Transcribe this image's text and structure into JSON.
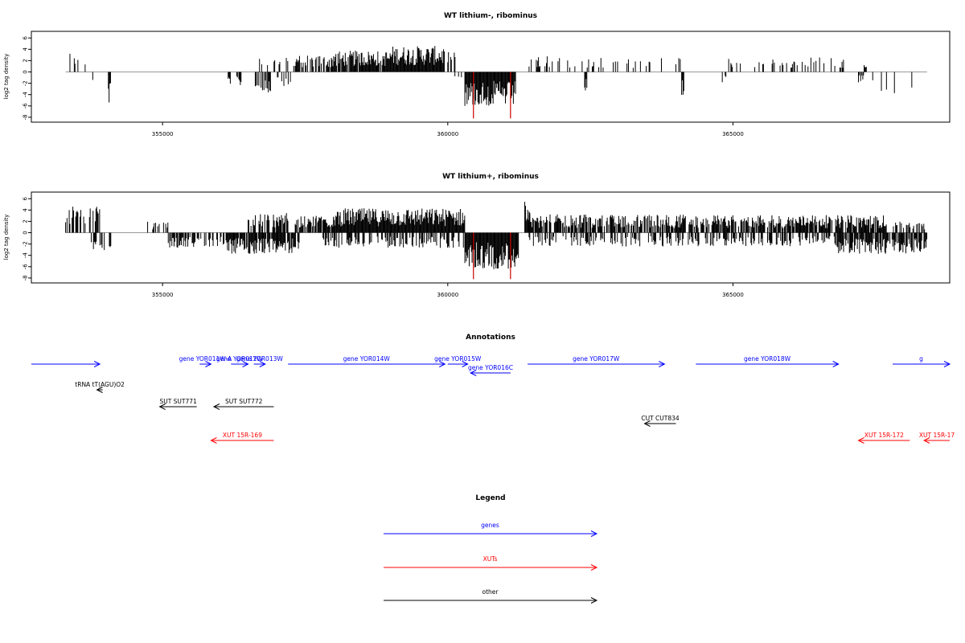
{
  "colors": {
    "gene": "#0000ff",
    "xut": "#ff0000",
    "other": "#000000",
    "highlight": "#cc0000",
    "baseline": "#999999"
  },
  "chart_data": [
    {
      "type": "bar",
      "title": "WT lithium-, ribominus",
      "ylabel": "log2 tag density",
      "xlim": [
        352700,
        368800
      ],
      "ylim": [
        -8.3,
        6.6
      ],
      "xticks": [
        355000,
        360000,
        365000
      ],
      "xtick_labels": [
        "355000",
        "360000",
        "365000"
      ],
      "yticks": [
        -8,
        -6,
        -4,
        -2,
        0,
        2,
        4,
        6
      ],
      "ytick_labels": [
        "-8",
        "-6",
        "-4",
        "-2",
        "0",
        "2",
        "4",
        "6"
      ],
      "data_range": [
        353300,
        368400
      ],
      "segments": [
        {
          "start": 353300,
          "end": 353650,
          "level": 2.6,
          "density": 0.25
        },
        {
          "start": 353700,
          "end": 353800,
          "level": -1.8,
          "density": 0.3
        },
        {
          "start": 354050,
          "end": 354100,
          "level": -4.5,
          "density": 1.0
        },
        {
          "start": 356150,
          "end": 356200,
          "level": -1.6,
          "density": 1.0
        },
        {
          "start": 356300,
          "end": 356400,
          "level": -2.0,
          "density": 0.5
        },
        {
          "start": 356600,
          "end": 356900,
          "level": -2.8,
          "density": 0.6
        },
        {
          "start": 356700,
          "end": 357200,
          "level": 2.0,
          "density": 0.3
        },
        {
          "start": 357000,
          "end": 357300,
          "level": -2.0,
          "density": 0.3
        },
        {
          "start": 357300,
          "end": 358000,
          "level": 2.2,
          "density": 0.7
        },
        {
          "start": 358000,
          "end": 359000,
          "level": 2.8,
          "density": 0.9
        },
        {
          "start": 359000,
          "end": 359950,
          "level": 3.4,
          "density": 1.0
        },
        {
          "start": 360000,
          "end": 360150,
          "level": 2.6,
          "density": 0.6
        },
        {
          "start": 360100,
          "end": 360300,
          "level": -1.2,
          "density": 0.4
        },
        {
          "start": 360300,
          "end": 361200,
          "level": -4.5,
          "density": 1.0
        },
        {
          "start": 361400,
          "end": 362000,
          "level": 2.4,
          "density": 0.25
        },
        {
          "start": 362000,
          "end": 363200,
          "level": 2.0,
          "density": 0.2
        },
        {
          "start": 362400,
          "end": 362450,
          "level": -2.8,
          "density": 1.0
        },
        {
          "start": 363200,
          "end": 364100,
          "level": 1.9,
          "density": 0.2
        },
        {
          "start": 364100,
          "end": 364150,
          "level": -3.2,
          "density": 1.0
        },
        {
          "start": 364800,
          "end": 364900,
          "level": -1.5,
          "density": 0.4
        },
        {
          "start": 364900,
          "end": 366100,
          "level": 1.8,
          "density": 0.2
        },
        {
          "start": 366100,
          "end": 367000,
          "level": 2.0,
          "density": 0.2
        },
        {
          "start": 367200,
          "end": 367300,
          "level": -1.6,
          "density": 0.5
        },
        {
          "start": 367300,
          "end": 367350,
          "level": 1.0,
          "density": 1.0
        },
        {
          "start": 367450,
          "end": 368350,
          "level": -2.8,
          "density": 0.1
        }
      ],
      "highlight_bars": [
        {
          "x": 360450,
          "y": -8.2
        },
        {
          "x": 361100,
          "y": -8.2
        }
      ]
    },
    {
      "type": "bar",
      "title": "WT lithium+, ribominus",
      "ylabel": "log2 tag density",
      "xlim": [
        352700,
        368800
      ],
      "ylim": [
        -8.3,
        6.6
      ],
      "xticks": [
        355000,
        360000,
        365000
      ],
      "xtick_labels": [
        "355000",
        "360000",
        "365000"
      ],
      "yticks": [
        -8,
        -6,
        -4,
        -2,
        0,
        2,
        4,
        6
      ],
      "ytick_labels": [
        "-8",
        "-6",
        "-4",
        "-2",
        "0",
        "2",
        "4",
        "6"
      ],
      "data_range": [
        353300,
        368400
      ],
      "segments": [
        {
          "start": 353300,
          "end": 353900,
          "level": 3.4,
          "density": 0.6
        },
        {
          "start": 353750,
          "end": 354100,
          "level": -2.6,
          "density": 0.5
        },
        {
          "start": 354700,
          "end": 355100,
          "level": 1.6,
          "density": 0.3
        },
        {
          "start": 355100,
          "end": 356100,
          "level": -2.0,
          "density": 0.5
        },
        {
          "start": 356100,
          "end": 357400,
          "level": -2.8,
          "density": 0.9
        },
        {
          "start": 356500,
          "end": 357200,
          "level": 2.6,
          "density": 0.6
        },
        {
          "start": 357300,
          "end": 358000,
          "level": 2.4,
          "density": 0.8
        },
        {
          "start": 357800,
          "end": 360300,
          "level": -2.0,
          "density": 0.5
        },
        {
          "start": 358000,
          "end": 360300,
          "level": 3.2,
          "density": 1.0
        },
        {
          "start": 360300,
          "end": 361250,
          "level": -4.8,
          "density": 1.0
        },
        {
          "start": 361350,
          "end": 361450,
          "level": 4.8,
          "density": 1.0
        },
        {
          "start": 361400,
          "end": 364300,
          "level": 2.4,
          "density": 0.7
        },
        {
          "start": 361400,
          "end": 364300,
          "level": -1.8,
          "density": 0.4
        },
        {
          "start": 364300,
          "end": 367700,
          "level": 2.3,
          "density": 0.8
        },
        {
          "start": 364300,
          "end": 366800,
          "level": -1.8,
          "density": 0.4
        },
        {
          "start": 366800,
          "end": 368400,
          "level": -2.8,
          "density": 0.8
        },
        {
          "start": 367800,
          "end": 368400,
          "level": 1.5,
          "density": 0.5
        }
      ],
      "highlight_bars": [
        {
          "x": 360450,
          "y": -8.2
        },
        {
          "x": 361100,
          "y": -8.2
        }
      ]
    }
  ],
  "annotations": {
    "title": "Annotations",
    "xlim": [
      352700,
      368800
    ],
    "features": [
      {
        "label": "",
        "start": 352700,
        "end": 353900,
        "strand": "+",
        "row": 0,
        "kind": "gene"
      },
      {
        "label": "gene YOR011W-A",
        "start": 355650,
        "end": 355850,
        "strand": "+",
        "row": 0,
        "kind": "gene"
      },
      {
        "label": "gene YOR012W",
        "start": 356200,
        "end": 356500,
        "strand": "+",
        "row": 0,
        "kind": "gene"
      },
      {
        "label": "gene YOR013W",
        "start": 356600,
        "end": 356800,
        "strand": "+",
        "row": 0,
        "kind": "gene"
      },
      {
        "label": "gene YOR014W",
        "start": 357200,
        "end": 359950,
        "strand": "+",
        "row": 0,
        "kind": "gene"
      },
      {
        "label": "gene YOR015W",
        "start": 360000,
        "end": 360350,
        "strand": "+",
        "row": 0,
        "kind": "gene"
      },
      {
        "label": "gene YOR016C",
        "start": 360400,
        "end": 361100,
        "strand": "-",
        "row": 1,
        "kind": "gene"
      },
      {
        "label": "gene YOR017W",
        "start": 361400,
        "end": 363800,
        "strand": "+",
        "row": 0,
        "kind": "gene"
      },
      {
        "label": "gene YOR018W",
        "start": 364350,
        "end": 366850,
        "strand": "+",
        "row": 0,
        "kind": "gene"
      },
      {
        "label": "g",
        "start": 367800,
        "end": 368800,
        "strand": "+",
        "row": 0,
        "kind": "gene"
      },
      {
        "label": "tRNA tT(AGU)O2",
        "start": 353850,
        "end": 353950,
        "strand": "-",
        "row": 2,
        "kind": "other"
      },
      {
        "label": "SUT SUT771",
        "start": 354950,
        "end": 355600,
        "strand": "-",
        "row": 3,
        "kind": "other"
      },
      {
        "label": "SUT SUT772",
        "start": 355900,
        "end": 356950,
        "strand": "-",
        "row": 3,
        "kind": "other"
      },
      {
        "label": "CUT CUT834",
        "start": 363450,
        "end": 364000,
        "strand": "-",
        "row": 4,
        "kind": "other"
      },
      {
        "label": "XUT 15R-169",
        "start": 355850,
        "end": 356950,
        "strand": "-",
        "row": 5,
        "kind": "xut"
      },
      {
        "label": "XUT 15R-172",
        "start": 367200,
        "end": 368100,
        "strand": "-",
        "row": 5,
        "kind": "xut"
      },
      {
        "label": "XUT 15R-17",
        "start": 368350,
        "end": 368800,
        "strand": "-",
        "row": 5,
        "kind": "xut"
      }
    ]
  },
  "legend": {
    "title": "Legend",
    "items": [
      {
        "label": "genes",
        "kind": "gene"
      },
      {
        "label": "XUTs",
        "kind": "xut"
      },
      {
        "label": "other",
        "kind": "other"
      }
    ]
  }
}
